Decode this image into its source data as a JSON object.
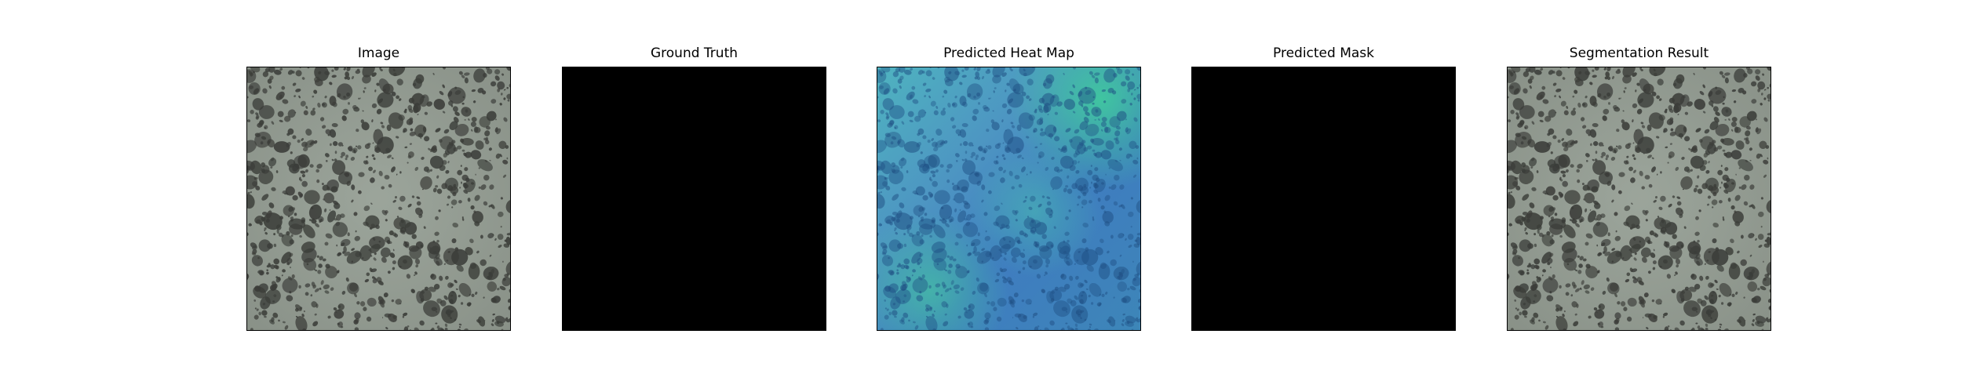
{
  "figure": {
    "panels": [
      {
        "title": "Image",
        "content": "texture",
        "tint": "none"
      },
      {
        "title": "Ground Truth",
        "content": "black",
        "tint": "none"
      },
      {
        "title": "Predicted Heat Map",
        "content": "texture",
        "tint": "heatmap"
      },
      {
        "title": "Predicted Mask",
        "content": "black",
        "tint": "none"
      },
      {
        "title": "Segmentation Result",
        "content": "texture",
        "tint": "none"
      }
    ],
    "colors": {
      "background": "#ffffff",
      "texture_base": "#97a096",
      "texture_spot": "#3b3d39",
      "mask": "#000000",
      "heatmap_blue": "#3f6fb4",
      "heatmap_teal": "#35b59a"
    }
  }
}
